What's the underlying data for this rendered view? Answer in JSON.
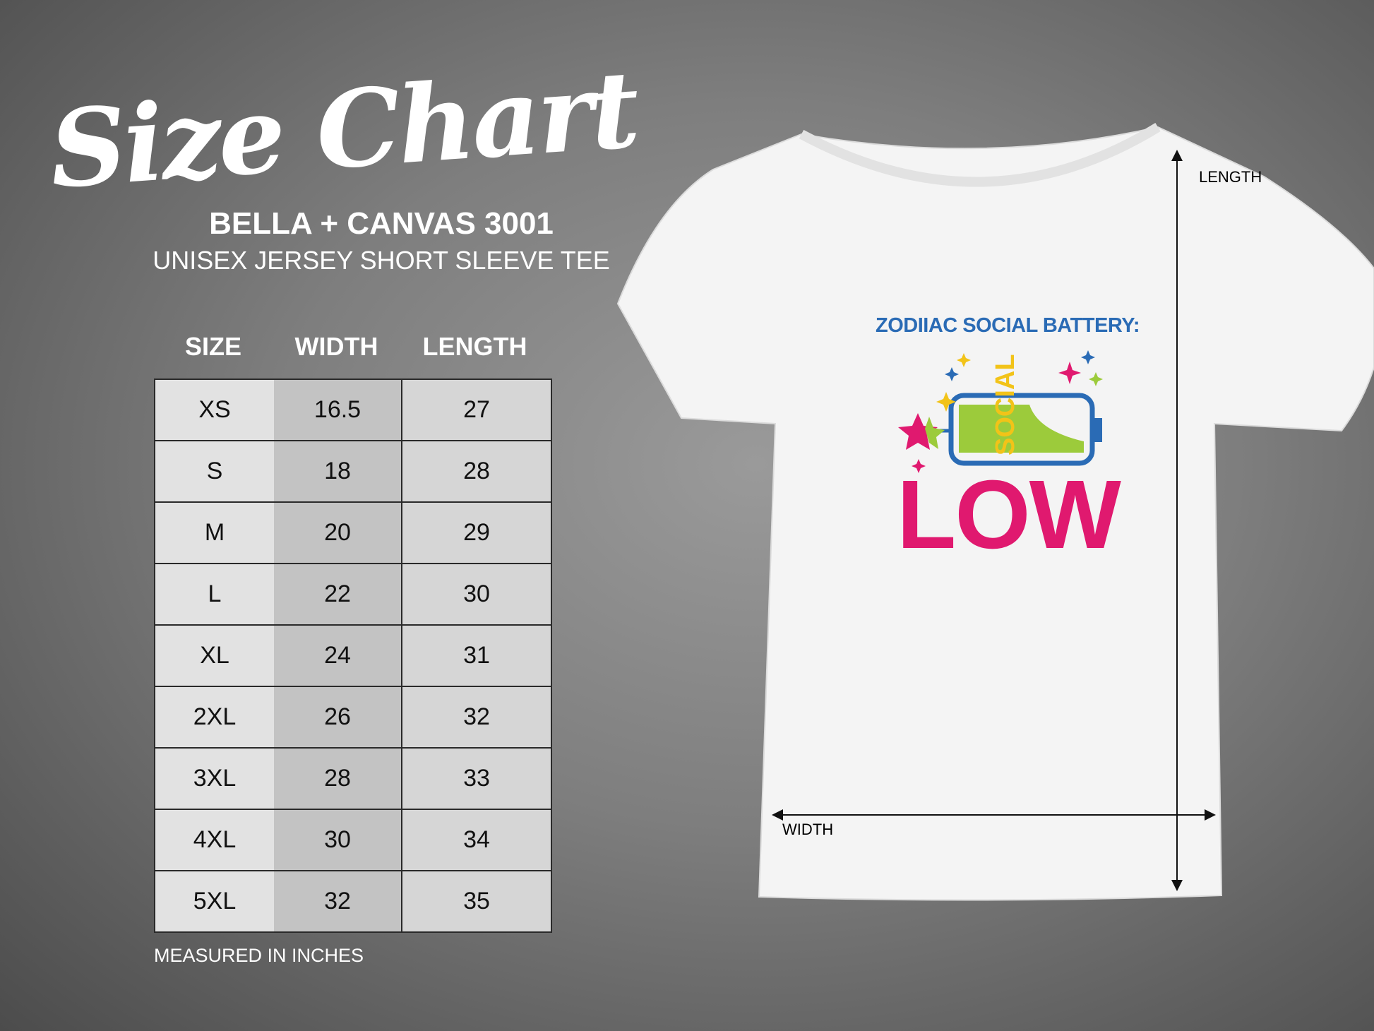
{
  "title": "Size Chart",
  "brand": "BELLA + CANVAS 3001",
  "subtitle": "UNISEX JERSEY SHORT SLEEVE TEE",
  "table": {
    "headers": [
      "SIZE",
      "WIDTH",
      "LENGTH"
    ],
    "rows": [
      [
        "XS",
        "16.5",
        "27"
      ],
      [
        "S",
        "18",
        "28"
      ],
      [
        "M",
        "20",
        "29"
      ],
      [
        "L",
        "22",
        "30"
      ],
      [
        "XL",
        "24",
        "31"
      ],
      [
        "2XL",
        "26",
        "32"
      ],
      [
        "3XL",
        "28",
        "33"
      ],
      [
        "4XL",
        "30",
        "34"
      ],
      [
        "5XL",
        "32",
        "35"
      ]
    ]
  },
  "note": "MEASURED IN INCHES",
  "shirt": {
    "length_label": "LENGTH",
    "width_label": "WIDTH",
    "graphic_title": "ZODIIAC SOCIAL BATTERY:",
    "graphic_battery_text": "SOCIAL",
    "graphic_word": "LOW",
    "colors": {
      "blue": "#2a6bb5",
      "pink": "#e0196f",
      "green": "#9ccb3b",
      "yellow": "#f2c318"
    }
  }
}
